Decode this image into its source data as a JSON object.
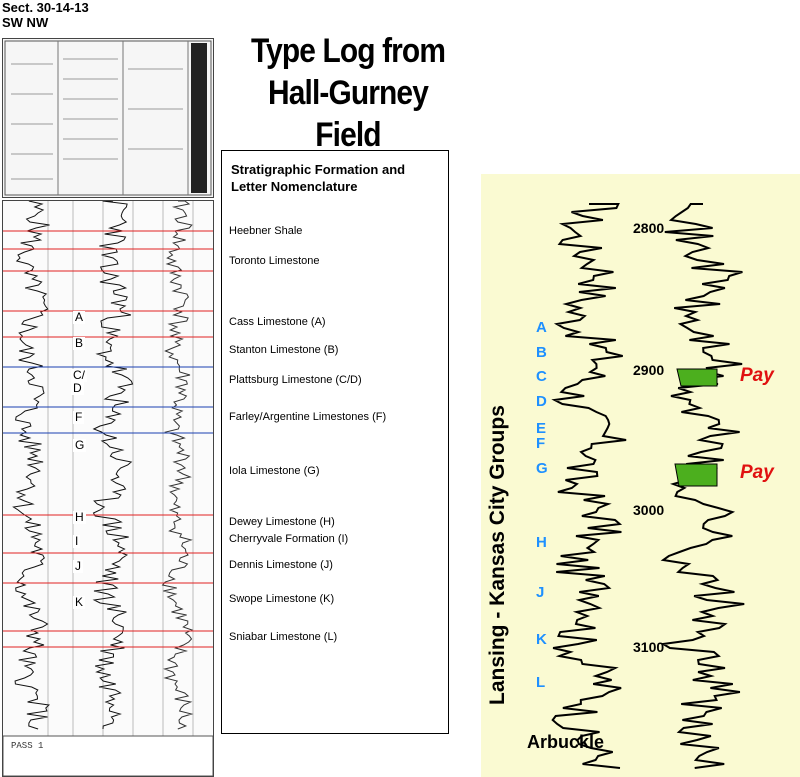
{
  "location": {
    "line1": "Sect. 30-14-13",
    "line2": "SW NW"
  },
  "title": {
    "line1": "Type Log from",
    "line2": "Hall-Gurney Field"
  },
  "nomenclature": {
    "heading_line1": "Stratigraphic Formation and",
    "heading_line2": "Letter Nomenclature",
    "formations": [
      {
        "name": "Heebner Shale"
      },
      {
        "name": "Toronto Limestone"
      },
      {
        "name": "Cass Limestone (A)"
      },
      {
        "name": "Stanton Limestone (B)"
      },
      {
        "name": "Plattsburg Limestone (C/D)"
      },
      {
        "name": "Farley/Argentine Limestones (F)"
      },
      {
        "name": "Iola Limestone (G)"
      },
      {
        "name": "Dewey Limestone (H)"
      },
      {
        "name": "Cherryvale Formation (I)"
      },
      {
        "name": "Dennis Limestone (J)"
      },
      {
        "name": "Swope Limestone (K)"
      },
      {
        "name": "Sniabar Limestone (L)"
      }
    ]
  },
  "log_letters": [
    "A",
    "B",
    "C/",
    "D",
    "F",
    "G",
    "H",
    "I",
    "J",
    "K"
  ],
  "scan_footer": {
    "pass": "PASS 1"
  },
  "type_log": {
    "group_label": "Lansing - Kansas City Groups",
    "bottom_label": "Arbuckle",
    "zone_letters": [
      "A",
      "B",
      "C",
      "D",
      "E",
      "F",
      "G",
      "H",
      "J",
      "K",
      "L"
    ],
    "depths": [
      "2800",
      "2900",
      "3000",
      "3100"
    ],
    "pay_label": "Pay",
    "colors": {
      "background": "#fafad2",
      "zone_letters": "#1e90ff",
      "pay": "#e01010",
      "pay_fill": "#4caf1e"
    }
  }
}
